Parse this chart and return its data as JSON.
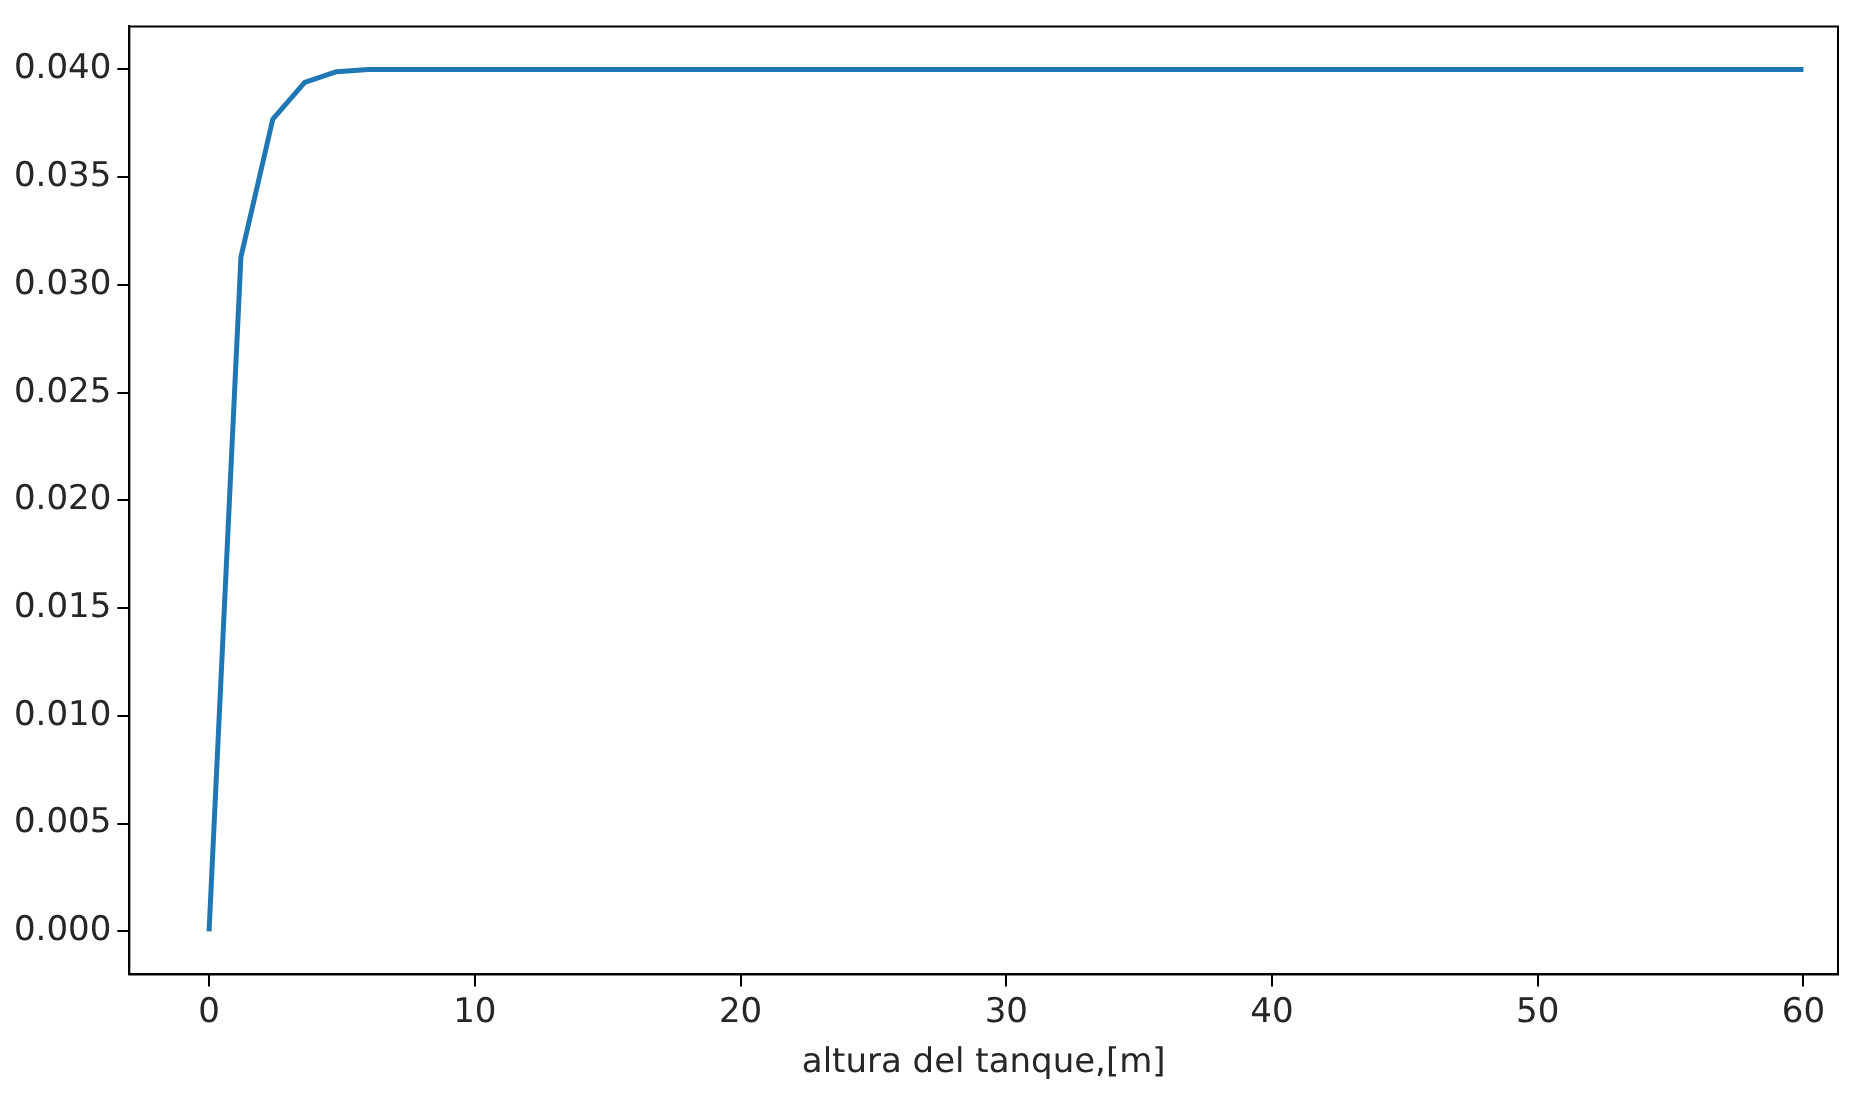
{
  "chart_data": {
    "type": "line",
    "xlabel": "altura del tanque,[m]",
    "x": [
      0,
      1.2,
      2.4,
      3.6,
      4.8,
      6,
      60
    ],
    "series": [
      {
        "color": "#1f77b4",
        "values": [
          0,
          0.0313,
          0.0377,
          0.0394,
          0.0399,
          0.04,
          0.04
        ]
      }
    ],
    "xlim": [
      -3,
      61.3
    ],
    "xticks": [
      0,
      10,
      20,
      30,
      40,
      50,
      60
    ],
    "ylim": [
      -0.002,
      0.042
    ],
    "yticks": [
      {
        "value": 0,
        "label": "0.000"
      },
      {
        "value": 0.005,
        "label": "0.005"
      },
      {
        "value": 0.01,
        "label": "0.010"
      },
      {
        "value": 0.015,
        "label": "0.015"
      },
      {
        "value": 0.02,
        "label": "0.020"
      },
      {
        "value": 0.025,
        "label": "0.025"
      },
      {
        "value": 0.03,
        "label": "0.030"
      },
      {
        "value": 0.035,
        "label": "0.035"
      },
      {
        "value": 0.04,
        "label": "0.040"
      }
    ],
    "grid": false,
    "legend": false,
    "marker": "none",
    "line_style": "solid"
  }
}
